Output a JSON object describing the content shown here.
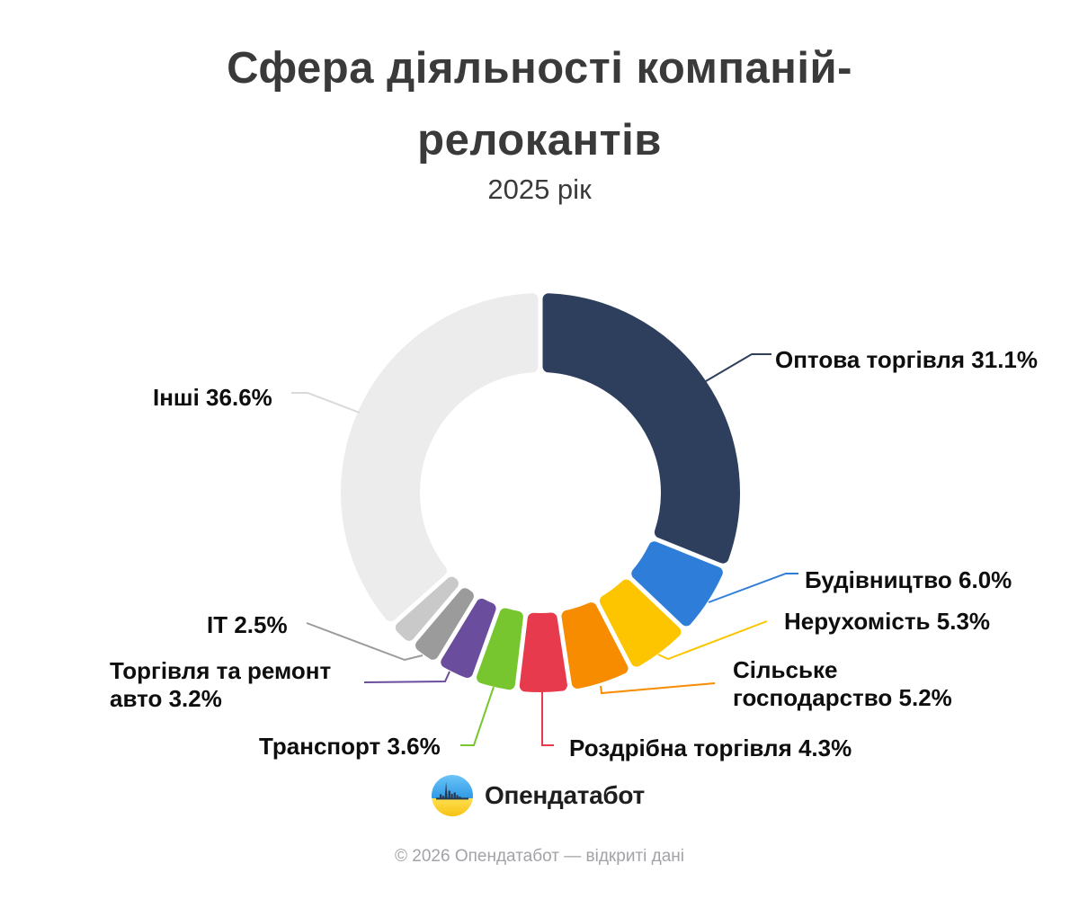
{
  "header": {
    "title": "Сфера діяльності компаній-\nрелокантів",
    "subtitle": "2025 рік"
  },
  "chart_data": {
    "type": "pie",
    "variant": "donut",
    "title": "Сфера діяльності компаній-релокантів",
    "subtitle": "2025 рік",
    "start_angle_deg": 0,
    "direction": "clockwise",
    "legend": "callout-labels",
    "total_percent": 100,
    "segments": [
      {
        "label": "Оптова торгівля",
        "value": 31.1,
        "display": "Оптова торгівля 31.1%",
        "color": "#2e3f5e"
      },
      {
        "label": "Будівництво",
        "value": 6.0,
        "display": "Будівництво 6.0%",
        "color": "#2e7dd8"
      },
      {
        "label": "Нерухомість",
        "value": 5.3,
        "display": "Нерухомість 5.3%",
        "color": "#fdc500"
      },
      {
        "label": "Сільське господарство",
        "value": 5.2,
        "display": "Сільське\nгосподарство 5.2%",
        "color": "#f88c00"
      },
      {
        "label": "Роздрібна торгівля",
        "value": 4.3,
        "display": "Роздрібна торгівля 4.3%",
        "color": "#e73b4d"
      },
      {
        "label": "Транспорт",
        "value": 3.6,
        "display": "Транспорт 3.6%",
        "color": "#77c62f"
      },
      {
        "label": "Торгівля та ремонт авто",
        "value": 3.2,
        "display": "Торгівля та ремонт\nавто 3.2%",
        "color": "#6a4d9c"
      },
      {
        "label": "ІТ",
        "value": 2.5,
        "display": "ІТ 2.5%",
        "color": "#9b9b9b"
      },
      {
        "label": "",
        "value": 2.2,
        "display": "",
        "color": "#c9c9c9"
      },
      {
        "label": "Інші",
        "value": 36.6,
        "display": "Інші 36.6%",
        "color": "#ececec",
        "line_color": "#d9d9d9"
      }
    ]
  },
  "brand": {
    "name": "Опендатабот",
    "logo_colors": {
      "blue": "#42a6ec",
      "blue_light": "#6cc4f8",
      "yellow": "#f9c81d",
      "yellow_light": "#ffe04f",
      "dark": "#27384e"
    }
  },
  "footer": {
    "copyright": "© 2026 Опендатабот — відкриті дані"
  }
}
